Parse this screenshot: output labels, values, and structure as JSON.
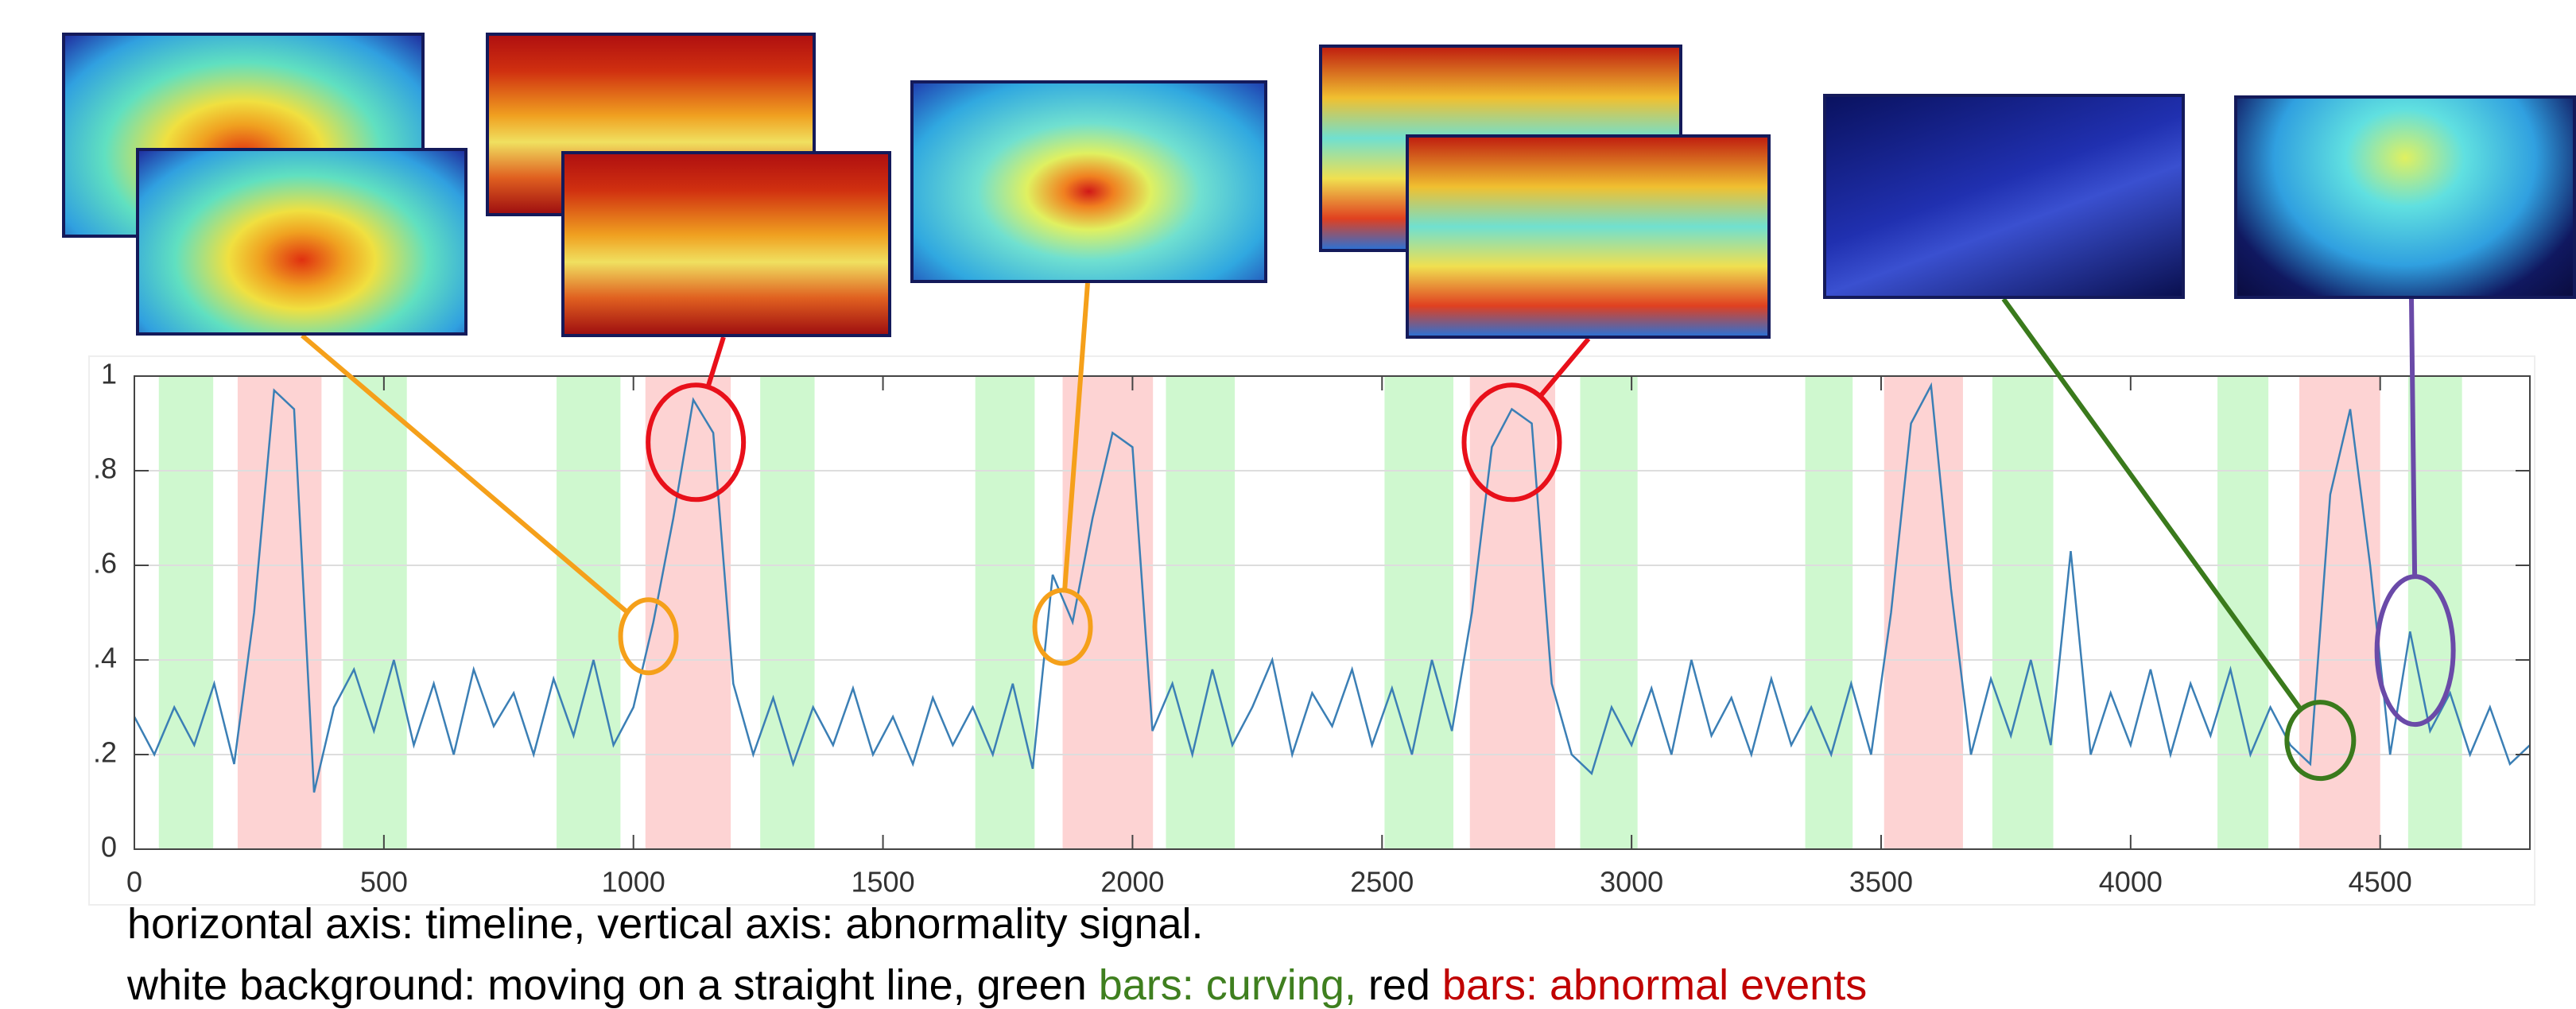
{
  "chart_data": {
    "type": "line",
    "x": [
      0,
      40,
      80,
      120,
      160,
      200,
      240,
      280,
      320,
      360,
      400,
      440,
      480,
      520,
      560,
      600,
      640,
      680,
      720,
      760,
      800,
      840,
      880,
      920,
      960,
      1000,
      1040,
      1080,
      1120,
      1160,
      1200,
      1240,
      1280,
      1320,
      1360,
      1400,
      1440,
      1480,
      1520,
      1560,
      1600,
      1640,
      1680,
      1720,
      1760,
      1800,
      1840,
      1880,
      1920,
      1960,
      2000,
      2040,
      2080,
      2120,
      2160,
      2200,
      2240,
      2280,
      2320,
      2360,
      2400,
      2440,
      2480,
      2520,
      2560,
      2600,
      2640,
      2680,
      2720,
      2760,
      2800,
      2840,
      2880,
      2920,
      2960,
      3000,
      3040,
      3080,
      3120,
      3160,
      3200,
      3240,
      3280,
      3320,
      3360,
      3400,
      3440,
      3480,
      3520,
      3560,
      3600,
      3640,
      3680,
      3720,
      3760,
      3800,
      3840,
      3880,
      3920,
      3960,
      4000,
      4040,
      4080,
      4120,
      4160,
      4200,
      4240,
      4280,
      4320,
      4360,
      4400,
      4440,
      4480,
      4520,
      4560,
      4600,
      4640,
      4680,
      4720,
      4760,
      4800
    ],
    "series": [
      {
        "color": "#3b7fb5",
        "values": [
          0.28,
          0.2,
          0.3,
          0.22,
          0.35,
          0.18,
          0.5,
          0.97,
          0.93,
          0.12,
          0.3,
          0.38,
          0.25,
          0.4,
          0.22,
          0.35,
          0.2,
          0.38,
          0.26,
          0.33,
          0.2,
          0.36,
          0.24,
          0.4,
          0.22,
          0.3,
          0.48,
          0.7,
          0.95,
          0.88,
          0.35,
          0.2,
          0.32,
          0.18,
          0.3,
          0.22,
          0.34,
          0.2,
          0.28,
          0.18,
          0.32,
          0.22,
          0.3,
          0.2,
          0.35,
          0.17,
          0.58,
          0.48,
          0.7,
          0.88,
          0.85,
          0.25,
          0.35,
          0.2,
          0.38,
          0.22,
          0.3,
          0.4,
          0.2,
          0.33,
          0.26,
          0.38,
          0.22,
          0.34,
          0.2,
          0.4,
          0.25,
          0.5,
          0.85,
          0.93,
          0.9,
          0.35,
          0.2,
          0.16,
          0.3,
          0.22,
          0.34,
          0.2,
          0.4,
          0.24,
          0.32,
          0.2,
          0.36,
          0.22,
          0.3,
          0.2,
          0.35,
          0.2,
          0.5,
          0.9,
          0.98,
          0.55,
          0.2,
          0.36,
          0.24,
          0.4,
          0.22,
          0.63,
          0.2,
          0.33,
          0.22,
          0.38,
          0.2,
          0.35,
          0.24,
          0.38,
          0.2,
          0.3,
          0.22,
          0.18,
          0.75,
          0.93,
          0.6,
          0.2,
          0.46,
          0.25,
          0.33,
          0.2,
          0.3,
          0.18,
          0.22
        ]
      }
    ],
    "xlim": [
      0,
      4800
    ],
    "ylim": [
      0,
      1
    ],
    "xticks": [
      0,
      500,
      1000,
      1500,
      2000,
      2500,
      3000,
      3500,
      4000,
      4500
    ],
    "yticks": [
      0,
      {
        "value": 0.2,
        "label": ".2"
      },
      {
        "value": 0.4,
        "label": ".4"
      },
      {
        "value": 0.6,
        "label": ".6"
      },
      {
        "value": 0.8,
        "label": ".8"
      },
      1
    ],
    "grid": true,
    "green_band_color": "#cff8cf",
    "red_band_color": "#fdd3d3",
    "green_bands": [
      [
        49,
        158
      ],
      [
        418,
        546
      ],
      [
        846,
        974
      ],
      [
        1254,
        1363
      ],
      [
        1685,
        1804
      ],
      [
        2067,
        2205
      ],
      [
        2505,
        2643
      ],
      [
        2897,
        3012
      ],
      [
        3348,
        3443
      ],
      [
        3723,
        3845
      ],
      [
        4174,
        4276
      ],
      [
        4556,
        4664
      ]
    ],
    "red_bands": [
      [
        207,
        375
      ],
      [
        1024,
        1195
      ],
      [
        1860,
        2041
      ],
      [
        2676,
        2847
      ],
      [
        3506,
        3664
      ],
      [
        4338,
        4500
      ]
    ],
    "markers": [
      {
        "x": 1030,
        "y": 0.45,
        "color": "#f5a01a"
      },
      {
        "x": 1125,
        "y": 0.86,
        "color": "#e8101a"
      },
      {
        "x": 1860,
        "y": 0.47,
        "color": "#f5a01a"
      },
      {
        "x": 2760,
        "y": 0.86,
        "color": "#e8101a"
      },
      {
        "x": 4380,
        "y": 0.23,
        "color": "#3a7a1c"
      },
      {
        "x": 4570,
        "y": 0.42,
        "color": "#6a4aa8"
      }
    ],
    "caption_line1": "horizontal axis: timeline, vertical axis: abnormality signal.",
    "caption_line2": [
      "white background: moving on a straight line, ",
      "green",
      " bars: curving, ",
      "red",
      " bars: abnormal events"
    ]
  }
}
